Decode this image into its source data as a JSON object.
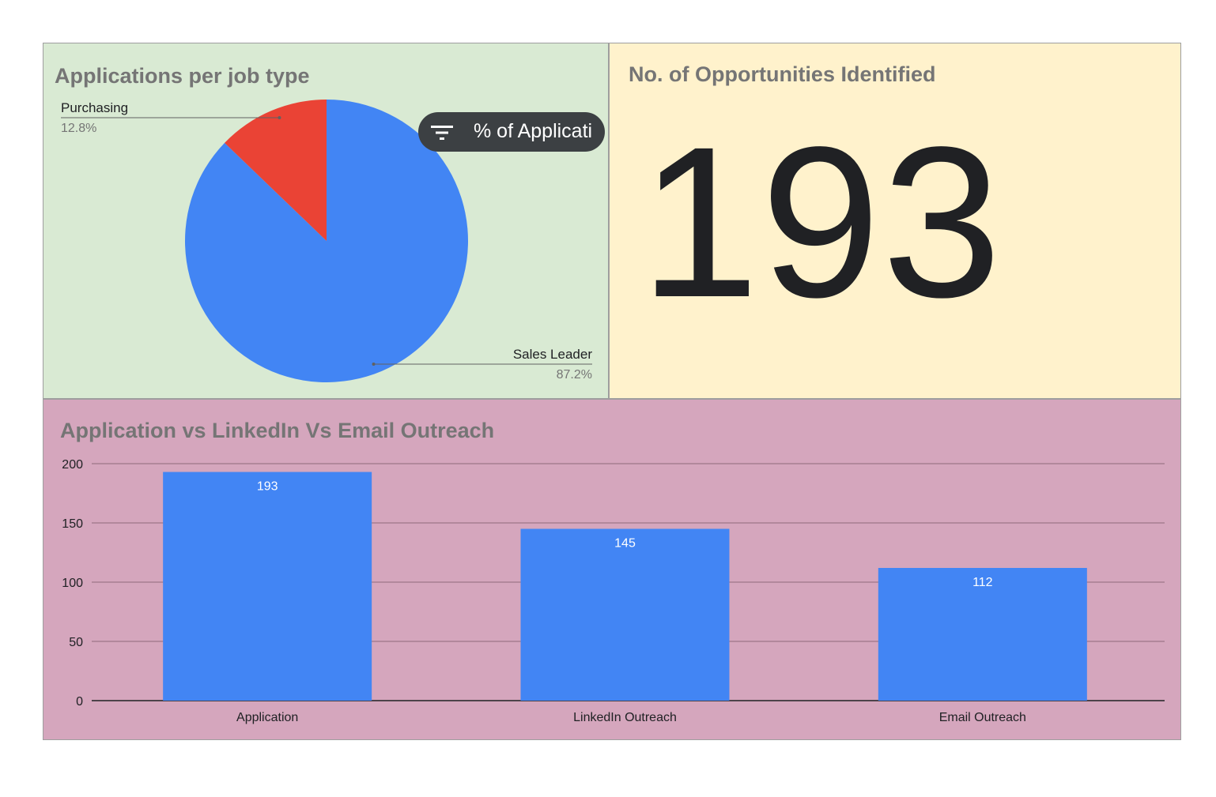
{
  "colors": {
    "pie_panel_bg": "#d9ead3",
    "scorecard_bg": "#fff2cc",
    "bar_panel_bg": "#d5a6bd",
    "blue": "#4285f4",
    "red": "#ea4335",
    "dark": "#202124",
    "title_gray": "#757575"
  },
  "pie": {
    "title": "Applications per job type",
    "filter_chip": {
      "icon": "filter-icon",
      "label": "% of Applicati"
    }
  },
  "scorecard": {
    "title": "No. of Opportunities Identified",
    "value": "193"
  },
  "bar": {
    "title": "Application vs LinkedIn Vs Email Outreach"
  },
  "chart_data": [
    {
      "type": "pie",
      "title": "Applications per job type",
      "slices": [
        {
          "label": "Sales Leader",
          "value": 87.2,
          "display": "87.2%",
          "color": "#4285f4"
        },
        {
          "label": "Purchasing",
          "value": 12.8,
          "display": "12.8%",
          "color": "#ea4335"
        }
      ]
    },
    {
      "type": "bar",
      "title": "Application vs LinkedIn Vs Email Outreach",
      "categories": [
        "Application",
        "LinkedIn Outreach",
        "Email Outreach"
      ],
      "values": [
        193,
        145,
        112
      ],
      "yticks": [
        0,
        50,
        100,
        150,
        200
      ],
      "ylim": [
        0,
        200
      ],
      "grid": true,
      "color": "#4285f4",
      "xlabel": "",
      "ylabel": ""
    }
  ]
}
